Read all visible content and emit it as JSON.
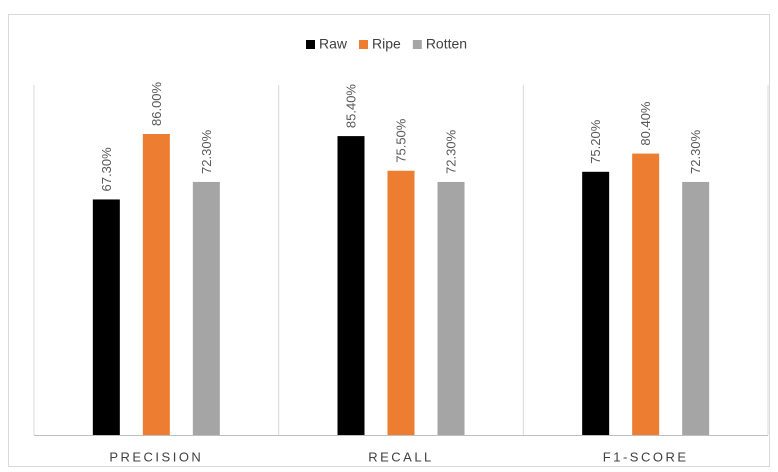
{
  "chart_data": {
    "type": "bar",
    "categories": [
      "PRECISION",
      "RECALL",
      "F1-SCORE"
    ],
    "series": [
      {
        "name": "Raw",
        "color": "#000000",
        "values": [
          67.3,
          85.4,
          75.2
        ],
        "value_labels": [
          "67.30%",
          "85.40%",
          "75.20%"
        ]
      },
      {
        "name": "Ripe",
        "color": "#ed7d31",
        "values": [
          86.0,
          75.5,
          80.4
        ],
        "value_labels": [
          "86.00%",
          "75.50%",
          "80.40%"
        ]
      },
      {
        "name": "Rotten",
        "color": "#a5a5a5",
        "values": [
          72.3,
          72.3,
          72.3
        ],
        "value_labels": [
          "72.30%",
          "72.30%",
          "72.30%"
        ]
      }
    ],
    "legend": "top"
  }
}
